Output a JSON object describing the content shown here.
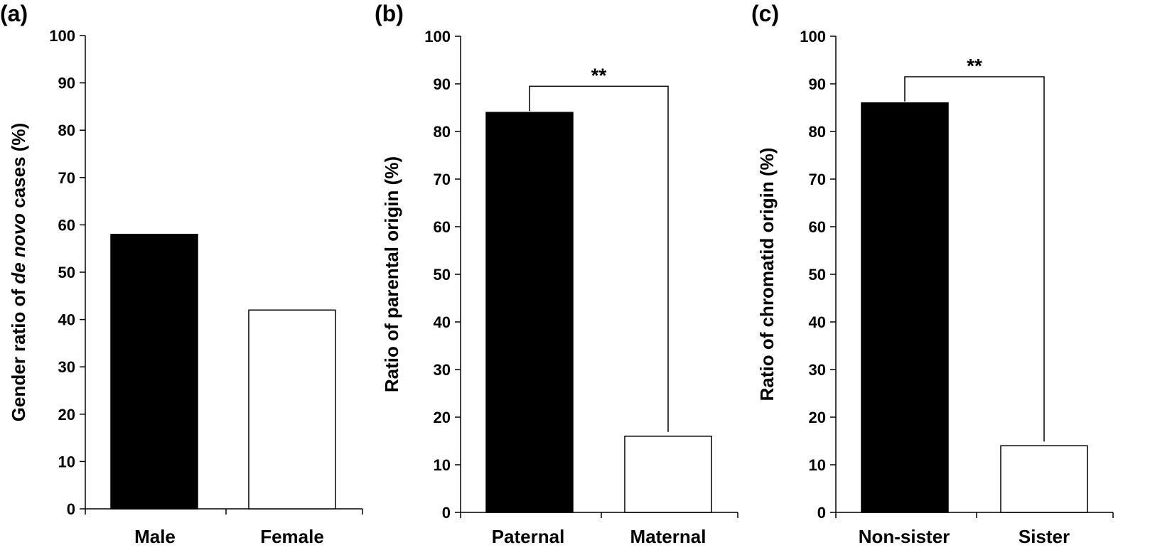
{
  "chart_data": [
    {
      "type": "bar",
      "panel": "(a)",
      "categories": [
        "Male",
        "Female"
      ],
      "values": [
        58,
        42
      ],
      "ylabel_parts": [
        "Gender ratio of ",
        "de novo",
        " cases  (%)"
      ],
      "ylim": [
        0,
        100
      ],
      "yticks": [
        0,
        10,
        20,
        30,
        40,
        50,
        60,
        70,
        80,
        90,
        100
      ],
      "bar_colors": [
        "#000000",
        "#ffffff"
      ],
      "significance": null
    },
    {
      "type": "bar",
      "panel": "(b)",
      "categories": [
        "Paternal",
        "Maternal"
      ],
      "values": [
        84,
        16
      ],
      "ylabel_parts": [
        "Ratio of parental origin (%)"
      ],
      "ylim": [
        0,
        100
      ],
      "yticks": [
        0,
        10,
        20,
        30,
        40,
        50,
        60,
        70,
        80,
        90,
        100
      ],
      "bar_colors": [
        "#000000",
        "#ffffff"
      ],
      "significance": {
        "label": "**",
        "level": 89.5
      }
    },
    {
      "type": "bar",
      "panel": "(c)",
      "categories": [
        "Non-sister",
        "Sister"
      ],
      "values": [
        86,
        14
      ],
      "ylabel_parts": [
        "Ratio of chromatid origin (%)"
      ],
      "ylim": [
        0,
        100
      ],
      "yticks": [
        0,
        10,
        20,
        30,
        40,
        50,
        60,
        70,
        80,
        90,
        100
      ],
      "bar_colors": [
        "#000000",
        "#ffffff"
      ],
      "significance": {
        "label": "**",
        "level": 91.5
      }
    }
  ]
}
